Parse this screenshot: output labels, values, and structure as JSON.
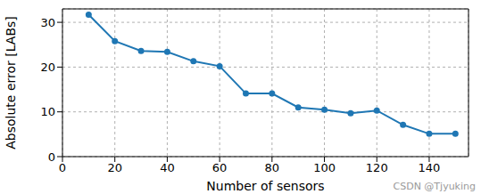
{
  "chart_data": {
    "type": "line",
    "x_label": "Number of sensors",
    "y_label": "Absolute error [LABs]",
    "x": [
      10,
      20,
      30,
      40,
      50,
      60,
      70,
      80,
      90,
      100,
      110,
      120,
      130,
      140,
      150
    ],
    "values": [
      31.7,
      25.8,
      23.6,
      23.4,
      21.3,
      20.2,
      14.1,
      14.1,
      11.0,
      10.5,
      9.7,
      10.3,
      7.1,
      5.1,
      5.1
    ],
    "color": "#1f77b4",
    "marker": "circle",
    "line_style": "solid",
    "xlim": [
      0,
      155
    ],
    "xticks": [
      0,
      20,
      40,
      60,
      80,
      100,
      120,
      140
    ],
    "ylim": [
      0,
      33
    ],
    "yticks": [
      0,
      10,
      20,
      30
    ],
    "grid": true,
    "annotations": [
      "CSDN @Tjyuking"
    ]
  }
}
